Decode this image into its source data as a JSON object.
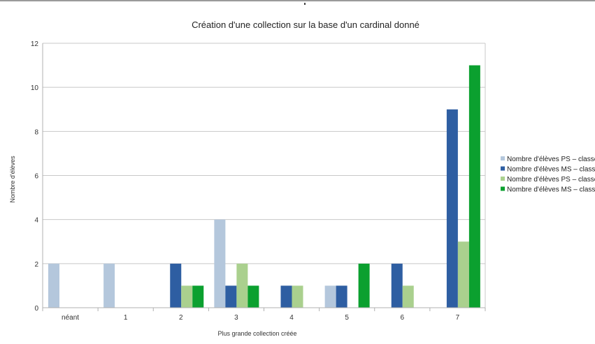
{
  "chart_data": {
    "type": "bar",
    "title": "Création d'une collection sur la base d'un cardinal donné",
    "xlabel": "Plus grande collection créée",
    "ylabel": "Nombre d'élèves",
    "ylim": [
      0,
      12
    ],
    "yticks": [
      0,
      2,
      4,
      6,
      8,
      10,
      12
    ],
    "grid": true,
    "legend_position": "right",
    "categories": [
      "néant",
      "1",
      "2",
      "3",
      "4",
      "5",
      "6",
      "7"
    ],
    "series": [
      {
        "name": "Nombre d'élèves PS – classe",
        "color": "#b4c7dc",
        "values": [
          2,
          2,
          0,
          4,
          0,
          1,
          0,
          0
        ]
      },
      {
        "name": "Nombre d'élèves MS – classe",
        "color": "#2e5ea2",
        "values": [
          0,
          0,
          2,
          1,
          1,
          1,
          2,
          9
        ]
      },
      {
        "name": "Nombre d'élèves PS – classe",
        "color": "#aad08e",
        "values": [
          0,
          0,
          1,
          2,
          1,
          0,
          1,
          3
        ]
      },
      {
        "name": "Nombre d'élèves MS – classe",
        "color": "#0ba02f",
        "values": [
          0,
          0,
          1,
          1,
          0,
          2,
          0,
          11
        ]
      }
    ]
  }
}
